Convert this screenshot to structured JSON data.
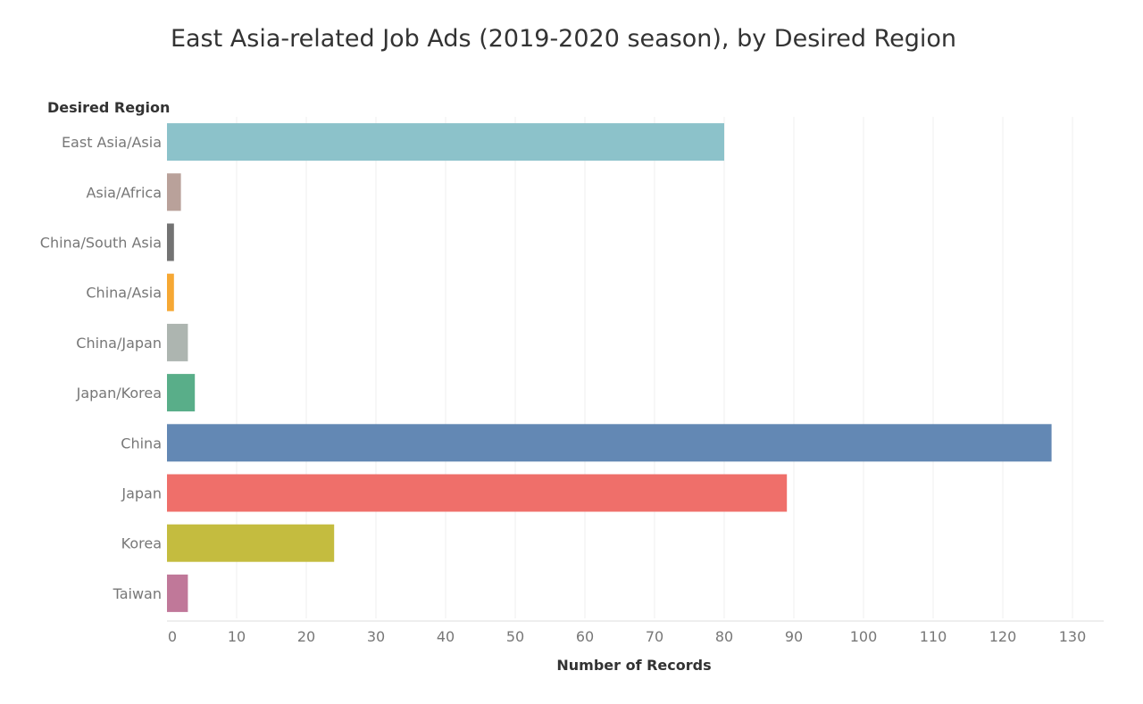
{
  "chart_data": {
    "type": "bar",
    "orientation": "horizontal",
    "title": "East Asia-related Job Ads (2019-2020 season), by Desired Region",
    "ylabel": "Desired Region",
    "xlabel": "Number of Records",
    "categories": [
      "East Asia/Asia",
      "Asia/Africa",
      "China/South Asia",
      "China/Asia",
      "China/Japan",
      "Japan/Korea",
      "China",
      "Japan",
      "Korea",
      "Taiwan"
    ],
    "values": [
      80,
      2,
      1,
      1,
      3,
      4,
      127,
      89,
      24,
      3
    ],
    "colors": [
      "#8cc2ca",
      "#b9a19a",
      "#737373",
      "#f6a834",
      "#adb5b0",
      "#59ae89",
      "#6388b4",
      "#ef6f6a",
      "#c4bc3f",
      "#c07899"
    ],
    "xlim": [
      0,
      134
    ],
    "xticks": [
      0,
      10,
      20,
      30,
      40,
      50,
      60,
      70,
      80,
      90,
      100,
      110,
      120,
      130
    ],
    "grid": true
  }
}
